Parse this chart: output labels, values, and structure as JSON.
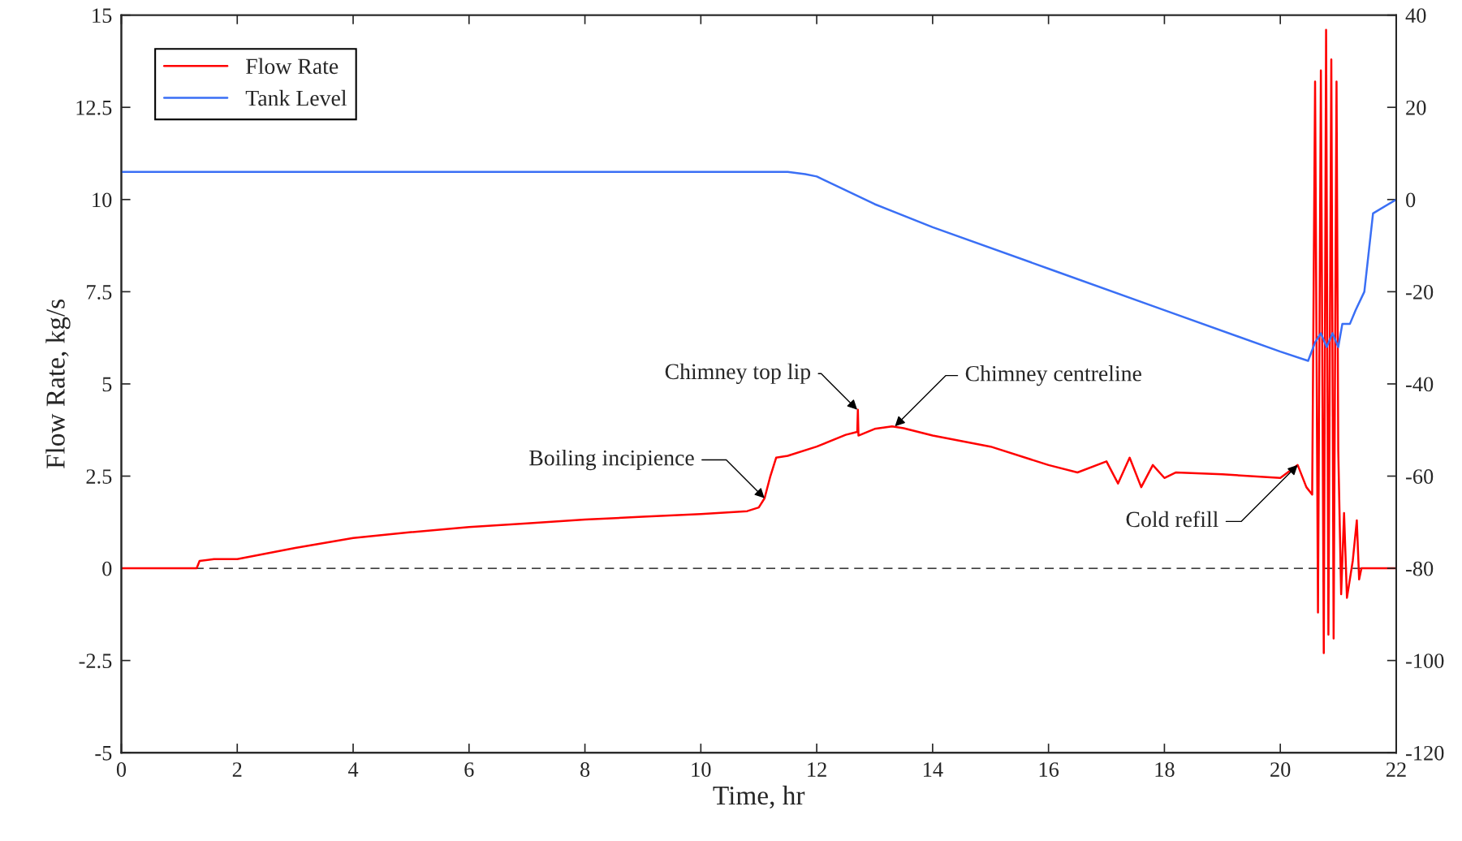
{
  "chart_data": {
    "type": "line",
    "xlabel": "Time, hr",
    "ylabel": "Flow Rate, kg/s",
    "xlim": [
      0,
      22
    ],
    "xticks": [
      0,
      2,
      4,
      6,
      8,
      10,
      12,
      14,
      16,
      18,
      20,
      22
    ],
    "ylim": [
      -5,
      15
    ],
    "yticks": [
      -5,
      -2.5,
      0,
      2.5,
      5,
      7.5,
      10,
      12.5,
      15
    ],
    "y2lim": [
      -120,
      40
    ],
    "y2ticks": [
      -120,
      -100,
      -80,
      -60,
      -40,
      -20,
      0,
      20,
      40
    ],
    "legend": "top left",
    "grid": false,
    "line_style": "solid",
    "marker": "none",
    "series": [
      {
        "name": "Flow Rate",
        "color": "#ff0000",
        "x": [
          0,
          1.3,
          1.35,
          1.6,
          2,
          3,
          4,
          5,
          6,
          7,
          8,
          9,
          10,
          10.8,
          11.0,
          11.1,
          11.2,
          11.3,
          11.5,
          12,
          12.5,
          12.7,
          12.71,
          12.72,
          13,
          13.3,
          13.5,
          14,
          15,
          16,
          16.5,
          17,
          17.2,
          17.4,
          17.6,
          17.8,
          18,
          18.2,
          19,
          20,
          20.3,
          20.45,
          20.55,
          20.6,
          20.65,
          20.7,
          20.75,
          20.79,
          20.83,
          20.88,
          20.92,
          20.97,
          21.0,
          21.05,
          21.1,
          21.15,
          21.25,
          21.32,
          21.36,
          21.4,
          22
        ],
        "values": [
          0,
          0,
          0.2,
          0.25,
          0.25,
          0.55,
          0.82,
          0.98,
          1.12,
          1.22,
          1.32,
          1.4,
          1.47,
          1.55,
          1.65,
          1.9,
          2.5,
          3.0,
          3.05,
          3.3,
          3.62,
          3.7,
          4.3,
          3.6,
          3.78,
          3.85,
          3.8,
          3.6,
          3.3,
          2.8,
          2.6,
          2.9,
          2.3,
          3.0,
          2.2,
          2.8,
          2.45,
          2.6,
          2.55,
          2.45,
          2.8,
          2.2,
          2.0,
          13.2,
          -1.2,
          13.5,
          -2.3,
          14.6,
          -1.8,
          13.8,
          -1.9,
          13.2,
          3.2,
          -0.7,
          1.5,
          -0.8,
          0.2,
          1.3,
          -0.3,
          0,
          0
        ]
      },
      {
        "name": "Tank Level",
        "color": "#3a6ff5",
        "axis": "y2",
        "x": [
          0,
          2,
          4,
          6,
          8,
          10,
          11.5,
          11.8,
          12,
          13,
          14,
          16,
          18,
          20,
          20.48,
          20.6,
          20.7,
          20.8,
          20.9,
          21.0,
          21.07,
          21.2,
          21.3,
          21.45,
          21.6,
          22
        ],
        "values": [
          6,
          6,
          6,
          6,
          6,
          6,
          6,
          5.5,
          5,
          -1,
          -6,
          -15,
          -24,
          -33,
          -35,
          -31,
          -29,
          -32,
          -29,
          -32,
          -27,
          -27,
          -24,
          -20,
          -3,
          0
        ]
      }
    ],
    "ref_lines": [
      {
        "axis": "y",
        "value": 0,
        "color": "#000000",
        "line_style": "dashed"
      }
    ],
    "annotations": [
      {
        "text": "Boiling incipience",
        "x": 11.1,
        "y": 1.9
      },
      {
        "text": "Chimney top lip",
        "x": 12.7,
        "y": 4.3
      },
      {
        "text": "Chimney centreline",
        "x": 13.35,
        "y": 3.85
      },
      {
        "text": "Cold refill",
        "x": 20.3,
        "y": 2.8
      }
    ]
  }
}
